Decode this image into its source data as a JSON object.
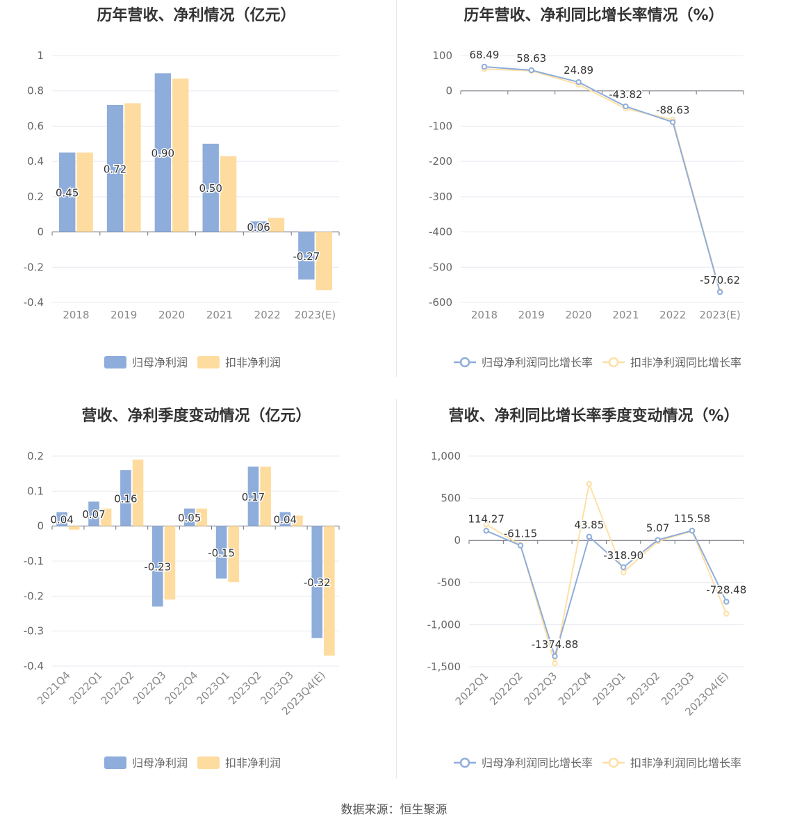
{
  "source": "数据来源：恒生聚源",
  "colors": {
    "blue": "#8eaddb",
    "orange": "#fedc9f",
    "blue_line": "#8eaddb",
    "orange_line": "#fee0a5"
  },
  "chart_data": [
    {
      "type": "bar",
      "title": "历年营收、净利情况（亿元）",
      "categories": [
        "2018",
        "2019",
        "2020",
        "2021",
        "2022",
        "2023(E)"
      ],
      "ylim": [
        -0.4,
        1
      ],
      "yticks": [
        "1",
        "0.8",
        "0.6",
        "0.4",
        "0.2",
        "0",
        "-0.2",
        "-0.4"
      ],
      "grid": true,
      "legend": "bottom",
      "series": [
        {
          "name": "归母净利润",
          "values": [
            0.45,
            0.72,
            0.9,
            0.5,
            0.06,
            -0.27
          ],
          "labels": [
            "0.45",
            "0.72",
            "0.90",
            "0.50",
            "0.06",
            "-0.27"
          ]
        },
        {
          "name": "扣非净利润",
          "values": [
            0.45,
            0.73,
            0.87,
            0.43,
            0.08,
            -0.33
          ]
        }
      ]
    },
    {
      "type": "line",
      "title": "历年营收、净利同比增长率情况（%）",
      "categories": [
        "2018",
        "2019",
        "2020",
        "2021",
        "2022",
        "2023(E)"
      ],
      "ylim": [
        -600,
        100
      ],
      "yticks": [
        "100",
        "0",
        "-100",
        "-200",
        "-300",
        "-400",
        "-500",
        "-600"
      ],
      "grid": true,
      "legend": "bottom",
      "series": [
        {
          "name": "归母净利润同比增长率",
          "values": [
            68.49,
            58.63,
            24.89,
            -43.82,
            -88.63,
            -570.62
          ],
          "labels": [
            "68.49",
            "58.63",
            "24.89",
            "-43.82",
            "-88.63",
            "-570.62"
          ]
        },
        {
          "name": "扣非净利润同比增长率",
          "values": [
            62,
            57,
            18,
            -50,
            -82,
            -568
          ]
        }
      ]
    },
    {
      "type": "bar",
      "title": "营收、净利季度变动情况（亿元）",
      "categories": [
        "2021Q4",
        "2022Q1",
        "2022Q2",
        "2022Q3",
        "2022Q4",
        "2023Q1",
        "2023Q2",
        "2023Q3",
        "2023Q4(E)"
      ],
      "ylim": [
        -0.4,
        0.2
      ],
      "yticks": [
        "0.2",
        "0.1",
        "0",
        "-0.1",
        "-0.2",
        "-0.3",
        "-0.4"
      ],
      "grid": true,
      "legend": "bottom",
      "series": [
        {
          "name": "归母净利润",
          "values": [
            0.04,
            0.07,
            0.16,
            -0.23,
            0.05,
            -0.15,
            0.17,
            0.04,
            -0.32
          ],
          "labels": [
            "0.04",
            "0.07",
            "0.16",
            "-0.23",
            "0.05",
            "-0.15",
            "0.17",
            "0.04",
            "-0.32"
          ]
        },
        {
          "name": "扣非净利润",
          "values": [
            -0.01,
            0.05,
            0.19,
            -0.21,
            0.05,
            -0.16,
            0.17,
            0.03,
            -0.37
          ]
        }
      ]
    },
    {
      "type": "line",
      "title": "营收、净利同比增长率季度变动情况（%）",
      "categories": [
        "2022Q1",
        "2022Q2",
        "2022Q3",
        "2022Q4",
        "2023Q1",
        "2023Q2",
        "2023Q3",
        "2023Q4(E)"
      ],
      "ylim": [
        -1500,
        1000
      ],
      "yticks": [
        "1,000",
        "500",
        "0",
        "-500",
        "-1,000",
        "-1,500"
      ],
      "grid": true,
      "legend": "bottom",
      "series": [
        {
          "name": "归母净利润同比增长率",
          "values": [
            114.27,
            -61.15,
            -1374.88,
            43.85,
            -318.9,
            5.07,
            115.58,
            -728.48
          ],
          "labels": [
            "114.27",
            "-61.15",
            "-1374.88",
            "43.85",
            "-318.90",
            "5.07",
            "115.58",
            "-728.48"
          ]
        },
        {
          "name": "扣非净利润同比增长率",
          "values": [
            190,
            -55,
            -1460,
            670,
            -380,
            -10,
            110,
            -870
          ]
        }
      ]
    }
  ]
}
